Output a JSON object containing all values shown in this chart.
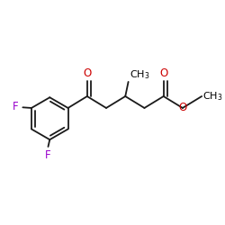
{
  "bg_color": "#ffffff",
  "bond_color": "#1a1a1a",
  "bond_lw": 1.3,
  "dbo": 0.018,
  "font_size": 8.5,
  "color_O": "#cc0000",
  "color_F": "#9900cc",
  "color_C": "#000000",
  "figsize": [
    2.5,
    2.5
  ],
  "dpi": 100,
  "xlim": [
    0,
    1
  ],
  "ylim": [
    0,
    1
  ]
}
